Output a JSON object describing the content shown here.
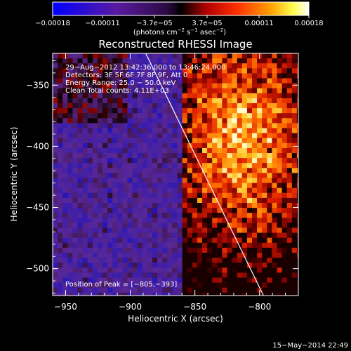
{
  "chart_data": {
    "type": "heatmap",
    "title": "Reconstructed RHESSI Image",
    "xlabel": "Heliocentric X (arcsec)",
    "ylabel": "Heliocentric Y (arcsec)",
    "xlim": [
      -960,
      -770
    ],
    "ylim": [
      -522,
      -324
    ],
    "x_ticks": [
      -950,
      -900,
      -850,
      -800
    ],
    "y_ticks": [
      -350,
      -400,
      -450,
      -500
    ],
    "x_tick_labels": [
      "−950",
      "−900",
      "−850",
      "−800"
    ],
    "y_tick_labels": [
      "−350",
      "−400",
      "−450",
      "−500"
    ],
    "colorbar": {
      "range": [
        -0.00018,
        0.00018
      ],
      "ticks": [
        -0.00018,
        -0.00011,
        -3.7e-05,
        3.7e-05,
        0.00011,
        0.00018
      ],
      "tick_labels": [
        "−0.00018",
        "−0.00011",
        "−3.7e−05",
        "3.7e−05",
        "0.00011",
        "0.00018"
      ],
      "colors": [
        "#0000ff",
        "#4a1a9c",
        "#6a2a9a",
        "#000000",
        "#aa0000",
        "#ff4000",
        "#ffaa00",
        "#ffff40",
        "#ffffff"
      ]
    },
    "annotations": [
      "29−Aug−2012 13:42:36.000 to 13:46:24.000",
      "Detectors: 3F 5F 6F 7F 8F 9F, Att 0",
      "Energy Range: 25.0 − 50.0 keV",
      "Clean    Total counts: 4.11E+03"
    ],
    "peak_label": "Position of Peak = [−805,−393]",
    "peak_position": [
      -805,
      -393
    ],
    "limb_line": [
      [
        -888,
        -324
      ],
      [
        -797,
        -522
      ]
    ]
  },
  "units_prefix": "(photons cm",
  "units_exp1": "−2",
  "units_mid": " s",
  "units_exp2": "−1",
  "units_mid2": " asec",
  "units_exp3": "−2",
  "units_suffix": ")",
  "timestamp": "15−May−2014 22:49"
}
